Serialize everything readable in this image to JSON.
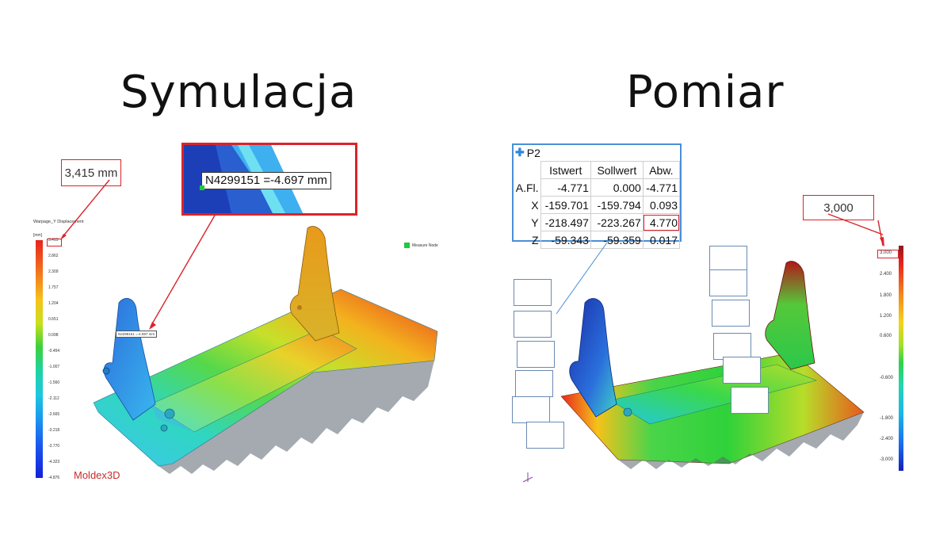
{
  "left_panel": {
    "title": "Symulacja",
    "callout_max": "3,415 mm",
    "node_callout": "N4299151 =-4.697 mm",
    "node_callout_small": "N4299151 =-4.697 mm",
    "legend_title": "Warpage_Y Displacement",
    "legend_unit": "[mm]",
    "legend_ticks": [
      "3.415",
      "2.862",
      "2.309",
      "1.757",
      "1.204",
      "0.651",
      "0.098",
      "-0.454",
      "-1.007",
      "-1.560",
      "-2.112",
      "-2.665",
      "-3.218",
      "-3.770",
      "-4.323",
      "-4.876"
    ],
    "measure_node_label": "Measure Node",
    "brand": "Moldex3D",
    "colors": {
      "callout_border": "#d9242a",
      "brand": "#cc2a2a",
      "marker": "#22c93a"
    }
  },
  "right_panel": {
    "title": "Pomiar",
    "callout_max": "3,000",
    "legend_ticks": [
      "3.000",
      "2.400",
      "1.800",
      "1.200",
      "0.600",
      "-0.600",
      "-1.800",
      "-2.400",
      "-3.000"
    ],
    "p2_table": {
      "label": "P2",
      "headers": [
        "Istwert",
        "Sollwert",
        "Abw."
      ],
      "rows": [
        {
          "label": "A.Fl.",
          "values": [
            "-4.771",
            "0.000",
            "-4.771"
          ]
        },
        {
          "label": "X",
          "values": [
            "-159.701",
            "-159.794",
            "0.093"
          ]
        },
        {
          "label": "Y",
          "values": [
            "-218.497",
            "-223.267",
            "4.770"
          ]
        },
        {
          "label": "Z",
          "values": [
            "-59.343",
            "-59.359",
            "0.017"
          ]
        }
      ]
    },
    "colors": {
      "table_border": "#4a8fd6",
      "highlight": "#d9242a"
    }
  }
}
